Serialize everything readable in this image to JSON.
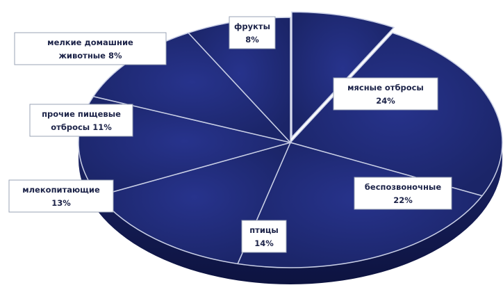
{
  "colors": {
    "slice_top": "#1f2a7a",
    "slice_side": "#131a52",
    "slice_edge": "#c9cfe6",
    "label_text": "#1c2348"
  },
  "chart_data": {
    "type": "pie",
    "title": "",
    "legend": "none",
    "slices": [
      {
        "label_lines": [
          "фрукты",
          "8%"
        ],
        "value": 8
      },
      {
        "label_lines": [
          "мясные отбросы",
          "24%"
        ],
        "value": 24
      },
      {
        "label_lines": [
          "беспозвоночные",
          "22%"
        ],
        "value": 22
      },
      {
        "label_lines": [
          "птицы",
          "14%"
        ],
        "value": 14
      },
      {
        "label_lines": [
          "млекопитающие",
          "13%"
        ],
        "value": 13
      },
      {
        "label_lines": [
          "прочие пищевые",
          "отбросы 11%"
        ],
        "value": 11
      },
      {
        "label_lines": [
          "мелкие домашние",
          "животные 8%"
        ],
        "value": 8
      }
    ]
  }
}
